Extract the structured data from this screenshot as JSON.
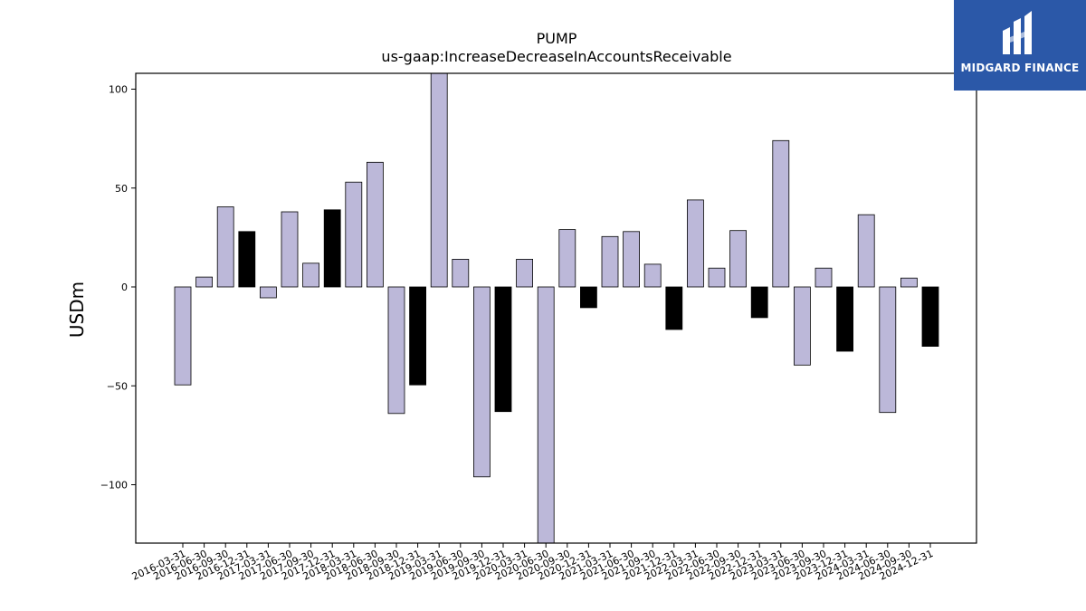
{
  "brand": {
    "name": "MIDGARD FINANCE"
  },
  "chart_data": {
    "type": "bar",
    "title": "PUMP",
    "subtitle": "us-gaap:IncreaseDecreaseInAccountsReceivable",
    "xlabel": "",
    "ylabel": "USDm",
    "ylim": [
      -130,
      108
    ],
    "yticks": [
      -100,
      -50,
      0,
      50,
      100
    ],
    "grid": false,
    "colors": {
      "quarterly": "#bcb8d9",
      "annual": "#000000",
      "edge": "#000000"
    },
    "categories": [
      "2016-03-31",
      "2016-06-30",
      "2016-09-30",
      "2016-12-31",
      "2017-03-31",
      "2017-06-30",
      "2017-09-30",
      "2017-12-31",
      "2018-03-31",
      "2018-06-30",
      "2018-09-30",
      "2018-12-31",
      "2019-03-31",
      "2019-06-30",
      "2019-09-30",
      "2019-12-31",
      "2020-03-31",
      "2020-06-30",
      "2020-09-30",
      "2020-12-31",
      "2021-03-31",
      "2021-06-30",
      "2021-09-30",
      "2021-12-31",
      "2022-03-31",
      "2022-06-30",
      "2022-09-30",
      "2022-12-31",
      "2023-03-31",
      "2023-06-30",
      "2023-09-30",
      "2023-12-31",
      "2024-03-31",
      "2024-06-30",
      "2024-09-30",
      "2024-12-31"
    ],
    "values": [
      -49.5,
      5,
      40.5,
      28,
      -5.5,
      38,
      12,
      39,
      53,
      63,
      -64,
      -49.5,
      108,
      14,
      -96,
      -63,
      14,
      -130,
      29,
      -10.5,
      25.5,
      28,
      11.5,
      -21.5,
      44,
      9.5,
      28.5,
      -15.5,
      74,
      -39.5,
      9.5,
      -32.5,
      36.5,
      -63.5,
      4.5,
      -30
    ],
    "annual": [
      false,
      false,
      false,
      true,
      false,
      false,
      false,
      true,
      false,
      false,
      false,
      true,
      false,
      false,
      false,
      true,
      false,
      false,
      false,
      true,
      false,
      false,
      false,
      true,
      false,
      false,
      false,
      true,
      false,
      false,
      false,
      true,
      false,
      false,
      false,
      true
    ]
  }
}
